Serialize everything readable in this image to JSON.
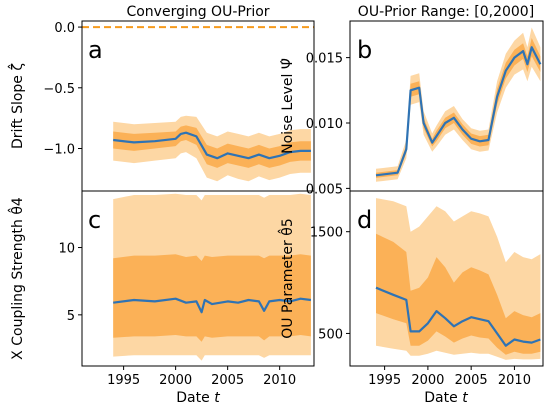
{
  "figure": {
    "left_title": "Converging OU-Prior",
    "right_title": "OU-Prior Range: [0,2000]",
    "x_label_text": "Date",
    "x_label_var": "t"
  },
  "colors": {
    "line": "#2f73b4",
    "band_inner": "#fbb157",
    "band_outer": "#fdd7a4",
    "zero_line": "#f59a1d"
  },
  "chart_data": [
    {
      "type": "area",
      "panel": "a",
      "ylabel": "Drift Slope ζ̂",
      "ylim": [
        -1.35,
        0.05
      ],
      "yticks": [
        0.0,
        -0.5,
        -1.0
      ],
      "ytick_labels": [
        "0.0",
        "−0.5",
        "−1.0"
      ],
      "reference_line": 0.0,
      "xlim": [
        1991.0,
        2013.3
      ],
      "x": [
        1994.0,
        1996.0,
        1998.0,
        2000.0,
        2000.5,
        2001.0,
        2002.0,
        2003.0,
        2004.0,
        2005.0,
        2006.0,
        2007.0,
        2008.0,
        2009.0,
        2010.0,
        2011.0,
        2012.0,
        2013.0
      ],
      "series": [
        {
          "role": "median",
          "values": [
            -0.93,
            -0.95,
            -0.94,
            -0.92,
            -0.88,
            -0.87,
            -0.9,
            -1.05,
            -1.08,
            -1.04,
            -1.06,
            -1.08,
            -1.05,
            -1.08,
            -1.06,
            -1.03,
            -1.02,
            -1.02
          ]
        },
        {
          "role": "inner_lower",
          "values": [
            -1.0,
            -1.02,
            -1.0,
            -0.98,
            -0.94,
            -0.93,
            -0.97,
            -1.13,
            -1.16,
            -1.12,
            -1.14,
            -1.16,
            -1.13,
            -1.16,
            -1.14,
            -1.11,
            -1.1,
            -1.1
          ]
        },
        {
          "role": "inner_upper",
          "values": [
            -0.86,
            -0.88,
            -0.87,
            -0.86,
            -0.82,
            -0.81,
            -0.83,
            -0.97,
            -1.0,
            -0.96,
            -0.98,
            -1.0,
            -0.97,
            -1.0,
            -0.98,
            -0.95,
            -0.94,
            -0.94
          ]
        },
        {
          "role": "outer_lower",
          "values": [
            -1.1,
            -1.12,
            -1.1,
            -1.08,
            -1.04,
            -1.03,
            -1.08,
            -1.24,
            -1.27,
            -1.22,
            -1.25,
            -1.27,
            -1.23,
            -1.26,
            -1.24,
            -1.21,
            -1.2,
            -1.2
          ]
        },
        {
          "role": "outer_upper",
          "values": [
            -0.78,
            -0.8,
            -0.79,
            -0.78,
            -0.74,
            -0.73,
            -0.74,
            -0.87,
            -0.9,
            -0.86,
            -0.88,
            -0.9,
            -0.87,
            -0.9,
            -0.88,
            -0.85,
            -0.84,
            -0.84
          ]
        }
      ]
    },
    {
      "type": "area",
      "panel": "b",
      "ylabel": "Noise Level Ψ̂",
      "ylim": [
        0.0048,
        0.0178
      ],
      "yticks": [
        0.005,
        0.01,
        0.015
      ],
      "ytick_labels": [
        "0.005",
        "0.010",
        "0.015"
      ],
      "xlim": [
        1991.0,
        2013.3
      ],
      "x": [
        1994.0,
        1996.5,
        1997.5,
        1998.0,
        1999.0,
        1999.5,
        2000.5,
        2001.0,
        2002.0,
        2003.0,
        2004.0,
        2005.0,
        2006.0,
        2007.0,
        2008.0,
        2009.0,
        2010.0,
        2011.0,
        2011.5,
        2012.0,
        2013.0
      ],
      "series": [
        {
          "role": "median",
          "values": [
            0.006,
            0.0062,
            0.008,
            0.0125,
            0.0127,
            0.01,
            0.0085,
            0.009,
            0.01,
            0.0104,
            0.0095,
            0.0088,
            0.0086,
            0.0087,
            0.012,
            0.014,
            0.015,
            0.0155,
            0.0145,
            0.0158,
            0.0145
          ]
        },
        {
          "role": "inner_lower",
          "values": [
            0.0058,
            0.006,
            0.0077,
            0.012,
            0.0122,
            0.0096,
            0.0082,
            0.0086,
            0.0096,
            0.01,
            0.0091,
            0.0084,
            0.0082,
            0.0083,
            0.0114,
            0.0134,
            0.0144,
            0.0149,
            0.0139,
            0.0151,
            0.0139
          ]
        },
        {
          "role": "inner_upper",
          "values": [
            0.0062,
            0.0064,
            0.0083,
            0.013,
            0.0132,
            0.0104,
            0.0088,
            0.0094,
            0.0104,
            0.0108,
            0.0099,
            0.0092,
            0.009,
            0.0091,
            0.0126,
            0.0146,
            0.0156,
            0.0161,
            0.0151,
            0.0165,
            0.0151
          ]
        },
        {
          "role": "outer_lower",
          "values": [
            0.0055,
            0.0057,
            0.0073,
            0.0114,
            0.0116,
            0.0091,
            0.0078,
            0.0082,
            0.0091,
            0.0095,
            0.0087,
            0.008,
            0.0078,
            0.0079,
            0.0108,
            0.0127,
            0.0137,
            0.0141,
            0.0132,
            0.0143,
            0.0132
          ]
        },
        {
          "role": "outer_upper",
          "values": [
            0.0065,
            0.0067,
            0.0087,
            0.0136,
            0.0138,
            0.0109,
            0.0092,
            0.0098,
            0.0109,
            0.0113,
            0.0103,
            0.0096,
            0.0094,
            0.0095,
            0.0132,
            0.0153,
            0.0163,
            0.0169,
            0.0158,
            0.0173,
            0.0158
          ]
        }
      ]
    },
    {
      "type": "area",
      "panel": "c",
      "ylabel": "X Coupling Strength θ̂4",
      "ylim": [
        1.2,
        14.2
      ],
      "yticks": [
        5,
        10
      ],
      "ytick_labels": [
        "5",
        "10"
      ],
      "xlim": [
        1991.0,
        2013.3
      ],
      "xticks": [
        1995,
        2000,
        2005,
        2010
      ],
      "x": [
        1994.0,
        1996.0,
        1998.0,
        2000.0,
        2001.0,
        2002.0,
        2002.5,
        2002.8,
        2003.5,
        2005.0,
        2006.0,
        2007.0,
        2008.0,
        2008.5,
        2009.0,
        2010.0,
        2011.0,
        2012.0,
        2013.0
      ],
      "series": [
        {
          "role": "median",
          "values": [
            5.9,
            6.1,
            6.0,
            6.2,
            5.9,
            6.0,
            5.2,
            6.1,
            5.8,
            6.0,
            5.9,
            6.1,
            6.0,
            5.3,
            6.0,
            6.1,
            6.0,
            6.2,
            6.1
          ]
        },
        {
          "role": "inner_lower",
          "values": [
            3.3,
            3.4,
            3.4,
            3.5,
            3.4,
            3.4,
            3.0,
            3.4,
            3.3,
            3.4,
            3.4,
            3.4,
            3.4,
            3.1,
            3.4,
            3.4,
            3.4,
            3.5,
            3.4
          ]
        },
        {
          "role": "inner_upper",
          "values": [
            9.2,
            9.4,
            9.4,
            9.5,
            9.3,
            9.4,
            9.0,
            9.4,
            9.3,
            9.4,
            9.4,
            9.4,
            9.4,
            9.2,
            9.4,
            9.4,
            9.4,
            9.5,
            9.4
          ]
        },
        {
          "role": "outer_lower",
          "values": [
            1.9,
            2.0,
            2.0,
            2.0,
            2.0,
            2.0,
            1.6,
            2.0,
            2.0,
            2.0,
            2.0,
            2.0,
            2.0,
            1.8,
            2.0,
            2.0,
            2.0,
            2.0,
            2.0
          ]
        },
        {
          "role": "outer_upper",
          "values": [
            13.6,
            13.9,
            13.9,
            14.0,
            13.9,
            13.9,
            13.5,
            13.9,
            13.9,
            13.9,
            13.9,
            13.9,
            13.9,
            13.7,
            13.9,
            13.9,
            13.9,
            14.0,
            13.9
          ]
        }
      ]
    },
    {
      "type": "area",
      "panel": "d",
      "ylabel": "OU Parameter θ̂5",
      "ylim": [
        180,
        1900
      ],
      "yticks": [
        500,
        1500
      ],
      "ytick_labels": [
        "500",
        "1500"
      ],
      "xlim": [
        1991.0,
        2013.3
      ],
      "xticks": [
        1995,
        2000,
        2005,
        2010
      ],
      "x": [
        1994.0,
        1996.0,
        1997.5,
        1998.0,
        1999.0,
        2000.0,
        2001.0,
        2002.0,
        2003.0,
        2004.0,
        2005.0,
        2006.0,
        2007.0,
        2008.0,
        2009.0,
        2010.0,
        2011.0,
        2012.0,
        2013.0
      ],
      "series": [
        {
          "role": "median",
          "values": [
            950,
            880,
            830,
            520,
            520,
            600,
            720,
            650,
            570,
            620,
            660,
            640,
            620,
            500,
            380,
            440,
            420,
            410,
            440
          ]
        },
        {
          "role": "inner_lower",
          "values": [
            700,
            640,
            600,
            380,
            380,
            430,
            520,
            470,
            410,
            450,
            480,
            460,
            450,
            360,
            290,
            320,
            300,
            300,
            320
          ]
        },
        {
          "role": "inner_upper",
          "values": [
            1480,
            1400,
            1300,
            920,
            950,
            1050,
            1250,
            1150,
            1000,
            1100,
            1150,
            1120,
            1080,
            880,
            650,
            720,
            680,
            660,
            700
          ]
        },
        {
          "role": "outer_lower",
          "values": [
            380,
            350,
            330,
            280,
            280,
            300,
            330,
            310,
            290,
            300,
            310,
            300,
            300,
            270,
            240,
            250,
            245,
            245,
            250
          ]
        },
        {
          "role": "outer_upper",
          "values": [
            1830,
            1800,
            1750,
            1500,
            1550,
            1650,
            1750,
            1700,
            1600,
            1650,
            1700,
            1680,
            1650,
            1450,
            1200,
            1300,
            1250,
            1230,
            1280
          ]
        }
      ]
    }
  ]
}
